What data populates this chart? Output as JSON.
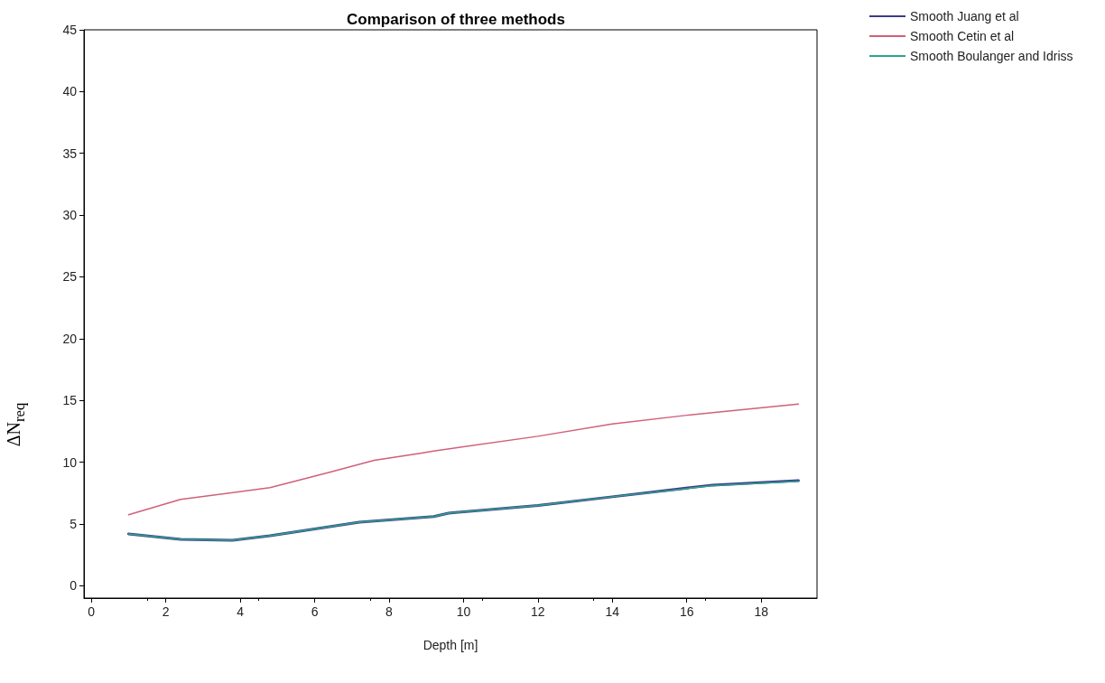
{
  "chart_data": {
    "type": "line",
    "title": "Comparison of three methods",
    "xlabel": "Depth [m]",
    "ylabel": "ΔN$_{req}$",
    "xlim": [
      -0.2,
      19.5
    ],
    "xticks": [
      0,
      2,
      4,
      6,
      8,
      10,
      12,
      14,
      16,
      18
    ],
    "ylim": [
      -1,
      45
    ],
    "yticks": [
      0,
      5,
      10,
      15,
      20,
      25,
      30,
      35,
      40,
      45
    ],
    "grid": false,
    "legend": "top right",
    "marker": "none",
    "line_style": "solid",
    "series": [
      {
        "name": "Smooth Juang et al",
        "color": "#3c3c8c",
        "x": [
          1,
          2.4,
          3.8,
          4.8,
          6.4,
          7.2,
          9.2,
          9.6,
          12,
          14,
          16.7,
          19
        ],
        "values": [
          4.2,
          3.75,
          3.68,
          4.04,
          4.78,
          5.15,
          5.6,
          5.88,
          6.5,
          7.2,
          8.15,
          8.5
        ]
      },
      {
        "name": "Smooth Cetin et al",
        "color": "#d0607a",
        "x": [
          1,
          2.4,
          4.8,
          6.4,
          7.6,
          8.8,
          9.2,
          12,
          14,
          16,
          19
        ],
        "values": [
          5.74,
          6.99,
          7.94,
          9.19,
          10.15,
          10.7,
          10.9,
          12.1,
          13.1,
          13.8,
          14.7
        ]
      },
      {
        "name": "Smooth Boulanger and Idriss",
        "color": "#2ea58a",
        "x": [
          1,
          2.4,
          3.8,
          4.8,
          6.4,
          7.2,
          9.2,
          9.6,
          12,
          14,
          16.7,
          19
        ],
        "values": [
          4.19,
          3.75,
          3.68,
          4.04,
          4.78,
          5.15,
          5.6,
          5.88,
          6.5,
          7.2,
          8.1,
          8.46
        ]
      }
    ]
  }
}
